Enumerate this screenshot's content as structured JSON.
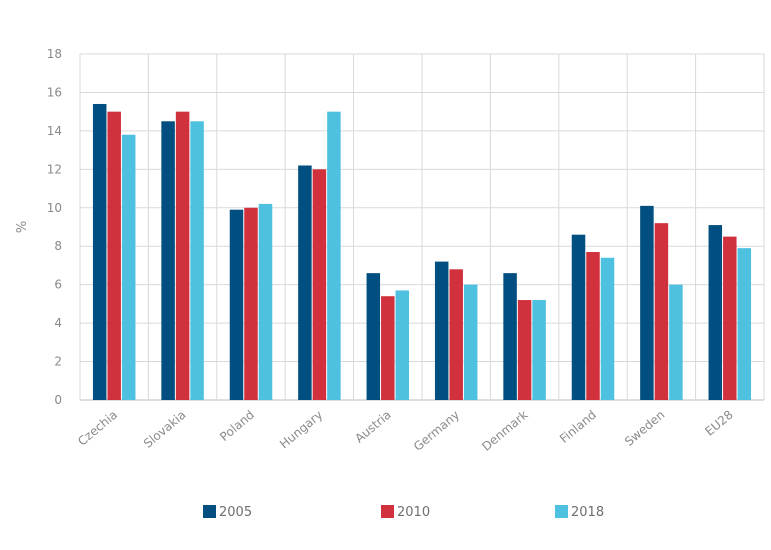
{
  "chart_data": {
    "type": "bar",
    "title": "",
    "xlabel": "",
    "ylabel": "%",
    "ylim": [
      0,
      18
    ],
    "yticks": [
      0,
      2,
      4,
      6,
      8,
      10,
      12,
      14,
      16,
      18
    ],
    "grid": true,
    "legend_position": "bottom",
    "categories": [
      "Czechia",
      "Slovakia",
      "Poland",
      "Hungary",
      "Austria",
      "Germany",
      "Denmark",
      "Finland",
      "Sweden",
      "EU28"
    ],
    "series": [
      {
        "name": "2005",
        "color": "#004f80",
        "values": [
          15.4,
          14.5,
          9.9,
          12.2,
          6.6,
          7.2,
          6.6,
          8.6,
          10.1,
          9.1
        ]
      },
      {
        "name": "2010",
        "color": "#d0313d",
        "values": [
          15.0,
          15.0,
          10.0,
          12.0,
          5.4,
          6.8,
          5.2,
          7.7,
          9.2,
          8.5
        ]
      },
      {
        "name": "2018",
        "color": "#4ec0e0",
        "values": [
          13.8,
          14.5,
          10.2,
          15.0,
          5.7,
          6.0,
          5.2,
          7.4,
          6.0,
          7.9
        ]
      }
    ]
  }
}
